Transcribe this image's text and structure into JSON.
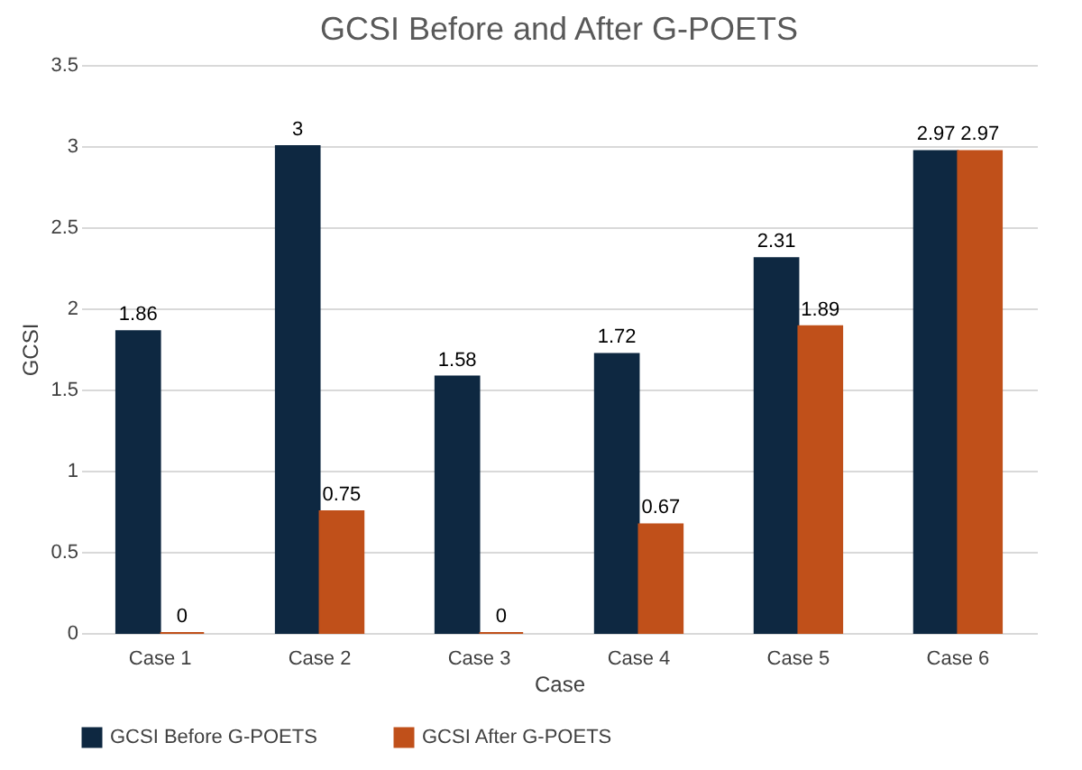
{
  "chart_data": {
    "type": "bar",
    "title": "GCSI Before and After G-POETS",
    "xlabel": "Case",
    "ylabel": "GCSI",
    "categories": [
      "Case 1",
      "Case 2",
      "Case 3",
      "Case 4",
      "Case 5",
      "Case 6"
    ],
    "series": [
      {
        "name": "GCSI Before G-POETS",
        "color": "#0e2841",
        "values": [
          1.86,
          3,
          1.58,
          1.72,
          2.31,
          2.97
        ]
      },
      {
        "name": "GCSI After G-POETS",
        "color": "#c0501a",
        "values": [
          0,
          0.75,
          0,
          0.67,
          1.89,
          2.97
        ]
      }
    ],
    "ylim": [
      0,
      3.5
    ],
    "yticks": [
      0,
      0.5,
      1,
      1.5,
      2,
      2.5,
      3,
      3.5
    ],
    "grid": "y",
    "legend": "bottom",
    "data_labels": true
  }
}
